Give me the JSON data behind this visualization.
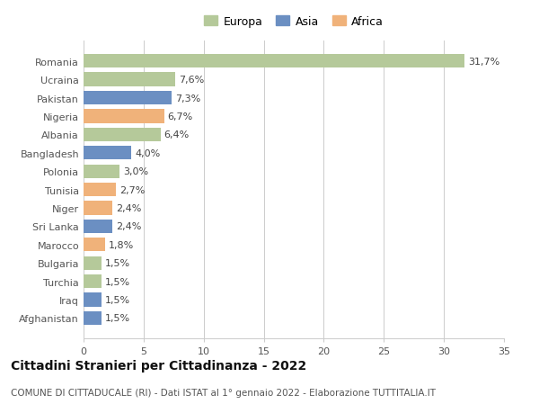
{
  "categories": [
    "Romania",
    "Ucraina",
    "Pakistan",
    "Nigeria",
    "Albania",
    "Bangladesh",
    "Polonia",
    "Tunisia",
    "Niger",
    "Sri Lanka",
    "Marocco",
    "Bulgaria",
    "Turchia",
    "Iraq",
    "Afghanistan"
  ],
  "values": [
    31.7,
    7.6,
    7.3,
    6.7,
    6.4,
    4.0,
    3.0,
    2.7,
    2.4,
    2.4,
    1.8,
    1.5,
    1.5,
    1.5,
    1.5
  ],
  "labels": [
    "31,7%",
    "7,6%",
    "7,3%",
    "6,7%",
    "6,4%",
    "4,0%",
    "3,0%",
    "2,7%",
    "2,4%",
    "2,4%",
    "1,8%",
    "1,5%",
    "1,5%",
    "1,5%",
    "1,5%"
  ],
  "continents": [
    "Europa",
    "Europa",
    "Asia",
    "Africa",
    "Europa",
    "Asia",
    "Europa",
    "Africa",
    "Africa",
    "Asia",
    "Africa",
    "Europa",
    "Europa",
    "Asia",
    "Asia"
  ],
  "colors": {
    "Europa": "#b5c99a",
    "Asia": "#6b8fc2",
    "Africa": "#f0b27a"
  },
  "xlim": [
    0,
    35
  ],
  "xticks": [
    0,
    5,
    10,
    15,
    20,
    25,
    30,
    35
  ],
  "title": "Cittadini Stranieri per Cittadinanza - 2022",
  "subtitle": "COMUNE DI CITTADUCALE (RI) - Dati ISTAT al 1° gennaio 2022 - Elaborazione TUTTITALIA.IT",
  "background_color": "#ffffff",
  "grid_color": "#cccccc",
  "bar_height": 0.75,
  "label_fontsize": 8,
  "ytick_fontsize": 8,
  "xtick_fontsize": 8,
  "title_fontsize": 10,
  "subtitle_fontsize": 7.5,
  "legend_fontsize": 9
}
